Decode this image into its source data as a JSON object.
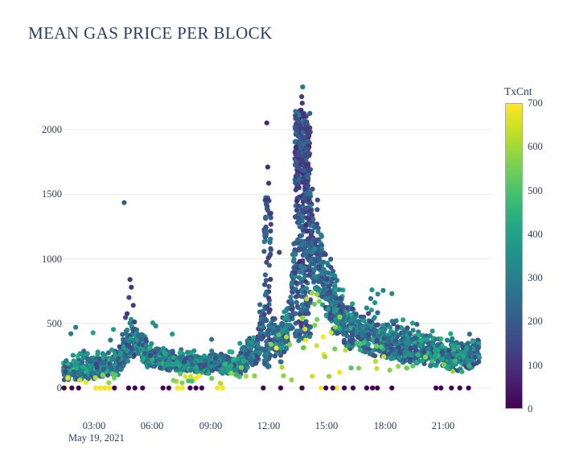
{
  "title": {
    "text": "MEAN GAS PRICE PER BLOCK"
  },
  "chart_data": {
    "type": "scatter",
    "title": "MEAN GAS PRICE PER BLOCK",
    "description": "Each dot is one block: x = block time, y = mean gas price of the block, color = transaction count (TxCnt), viridis colormap",
    "x_axis": {
      "date_label": "May 19, 2021",
      "tick_labels": [
        "03:00",
        "06:00",
        "09:00",
        "12:00",
        "15:00",
        "18:00",
        "21:00"
      ],
      "tick_hours": [
        3,
        6,
        9,
        12,
        15,
        18,
        21
      ],
      "range_hours": [
        1.3,
        22.95
      ]
    },
    "y_axis": {
      "tick_labels": [
        "0",
        "500",
        "1000",
        "1500",
        "2000"
      ],
      "ticks": [
        0,
        500,
        1000,
        1500,
        2000
      ],
      "range": [
        0,
        2400
      ],
      "grid": true
    },
    "colorbar": {
      "title": "TxCnt",
      "min": 0,
      "max": 700,
      "ticks": [
        0,
        100,
        200,
        300,
        400,
        500,
        600,
        700
      ],
      "tick_labels": [
        "0",
        "100",
        "200",
        "300",
        "400",
        "500",
        "600",
        "700"
      ],
      "colormap": "viridis"
    },
    "band_segments": [
      [
        1.4,
        3.0,
        185,
        140,
        150,
        45,
        140,
        450
      ],
      [
        3.0,
        4.2,
        140,
        150,
        195,
        45,
        140,
        450
      ],
      [
        4.2,
        4.7,
        65,
        195,
        330,
        60,
        140,
        420
      ],
      [
        4.7,
        5.15,
        60,
        330,
        385,
        75,
        130,
        380
      ],
      [
        5.15,
        5.8,
        75,
        385,
        255,
        60,
        140,
        420
      ],
      [
        5.8,
        7.0,
        145,
        255,
        210,
        45,
        140,
        450
      ],
      [
        7.0,
        9.0,
        230,
        210,
        180,
        40,
        140,
        460
      ],
      [
        9.0,
        10.5,
        175,
        180,
        185,
        40,
        140,
        460
      ],
      [
        10.5,
        11.4,
        105,
        195,
        290,
        55,
        140,
        430
      ],
      [
        11.4,
        11.75,
        48,
        310,
        480,
        110,
        120,
        350
      ],
      [
        12.1,
        12.6,
        62,
        430,
        345,
        85,
        130,
        400
      ],
      [
        12.6,
        13.1,
        62,
        350,
        520,
        95,
        130,
        400
      ],
      [
        13.1,
        13.35,
        42,
        520,
        950,
        160,
        110,
        320
      ],
      [
        14.1,
        14.6,
        100,
        1230,
        950,
        170,
        110,
        340
      ],
      [
        14.6,
        15.3,
        120,
        950,
        650,
        135,
        130,
        390
      ],
      [
        15.3,
        16.2,
        130,
        650,
        480,
        110,
        140,
        430
      ],
      [
        16.2,
        17.5,
        160,
        480,
        400,
        90,
        140,
        440
      ],
      [
        17.5,
        19.0,
        180,
        400,
        330,
        80,
        140,
        450
      ],
      [
        19.0,
        20.5,
        170,
        330,
        285,
        70,
        140,
        450
      ],
      [
        20.5,
        22.0,
        170,
        285,
        230,
        62,
        140,
        460
      ],
      [
        22.0,
        22.85,
        100,
        230,
        290,
        60,
        140,
        440
      ]
    ],
    "column_segments": [
      [
        11.75,
        12.12,
        72,
        280,
        1480,
        110,
        310
      ],
      [
        11.78,
        12.1,
        30,
        150,
        300,
        130,
        350
      ],
      [
        13.35,
        14.15,
        240,
        900,
        2150,
        90,
        290
      ],
      [
        13.35,
        14.15,
        90,
        350,
        950,
        110,
        330
      ],
      [
        13.4,
        14.05,
        130,
        1550,
        2050,
        90,
        250
      ]
    ],
    "sprinkle_segments": [
      [
        1.6,
        4.2,
        10,
        25,
        110,
        480,
        700
      ],
      [
        6.8,
        9.8,
        14,
        25,
        120,
        480,
        700
      ],
      [
        10.0,
        11.3,
        7,
        30,
        180,
        450,
        660
      ],
      [
        12.1,
        13.3,
        8,
        60,
        420,
        500,
        700
      ],
      [
        13.6,
        16.3,
        26,
        60,
        820,
        500,
        700
      ],
      [
        16.3,
        18.5,
        10,
        90,
        350,
        470,
        650
      ],
      [
        18.5,
        21.5,
        8,
        100,
        300,
        460,
        620
      ],
      [
        1.5,
        11.0,
        12,
        260,
        520,
        250,
        420
      ],
      [
        16.8,
        19.2,
        5,
        600,
        780,
        280,
        380
      ]
    ],
    "outlier_points": [
      [
        4.55,
        1435,
        200
      ],
      [
        4.85,
        840,
        110
      ],
      [
        4.92,
        780,
        95
      ],
      [
        4.8,
        700,
        140
      ],
      [
        5.02,
        640,
        120
      ],
      [
        4.7,
        575,
        100
      ],
      [
        4.62,
        545,
        150
      ],
      [
        11.9,
        2052,
        80
      ],
      [
        11.95,
        1710,
        90
      ],
      [
        12.0,
        1585,
        100
      ],
      [
        11.87,
        1460,
        110
      ],
      [
        12.05,
        1345,
        120
      ],
      [
        13.75,
        2330,
        280
      ],
      [
        13.7,
        2255,
        120
      ],
      [
        13.73,
        2205,
        110
      ],
      [
        13.67,
        2150,
        100
      ],
      [
        13.78,
        2120,
        95
      ],
      [
        12.55,
        1050,
        140
      ],
      [
        17.9,
        755,
        310
      ],
      [
        18.35,
        730,
        330
      ],
      [
        2.05,
        470,
        300
      ],
      [
        1.8,
        420,
        280
      ]
    ],
    "zero_row": {
      "y": 0,
      "purple_txcnt": 4,
      "yellow_txcnt": 690,
      "purple_hours": [
        1.45,
        1.85,
        2.2,
        4.05,
        4.78,
        5.1,
        5.5,
        6.55,
        6.85,
        7.95,
        8.25,
        8.55,
        11.72,
        12.62,
        13.72,
        14.95,
        15.3,
        15.9,
        16.35,
        17.05,
        17.35,
        17.6,
        18.35,
        20.62,
        20.88,
        21.42,
        21.85,
        22.3
      ],
      "yellow_hours": [
        1.5,
        3.1,
        3.32,
        3.55,
        3.78,
        7.3,
        7.55,
        9.35,
        9.62,
        13.66,
        14.7,
        15.5
      ]
    }
  },
  "colors": {
    "text": "#2a3f5f",
    "grid": "#ebebeb",
    "background": "#ffffff",
    "colorbar_border": "#a9a9a9",
    "viridis_stops": [
      [
        0.0,
        "#440154"
      ],
      [
        0.1,
        "#482475"
      ],
      [
        0.2,
        "#414487"
      ],
      [
        0.3,
        "#355f8d"
      ],
      [
        0.4,
        "#2a788e"
      ],
      [
        0.5,
        "#21918c"
      ],
      [
        0.6,
        "#22a884"
      ],
      [
        0.7,
        "#44bf70"
      ],
      [
        0.8,
        "#7ad151"
      ],
      [
        0.9,
        "#bddf26"
      ],
      [
        1.0,
        "#fde725"
      ]
    ]
  }
}
